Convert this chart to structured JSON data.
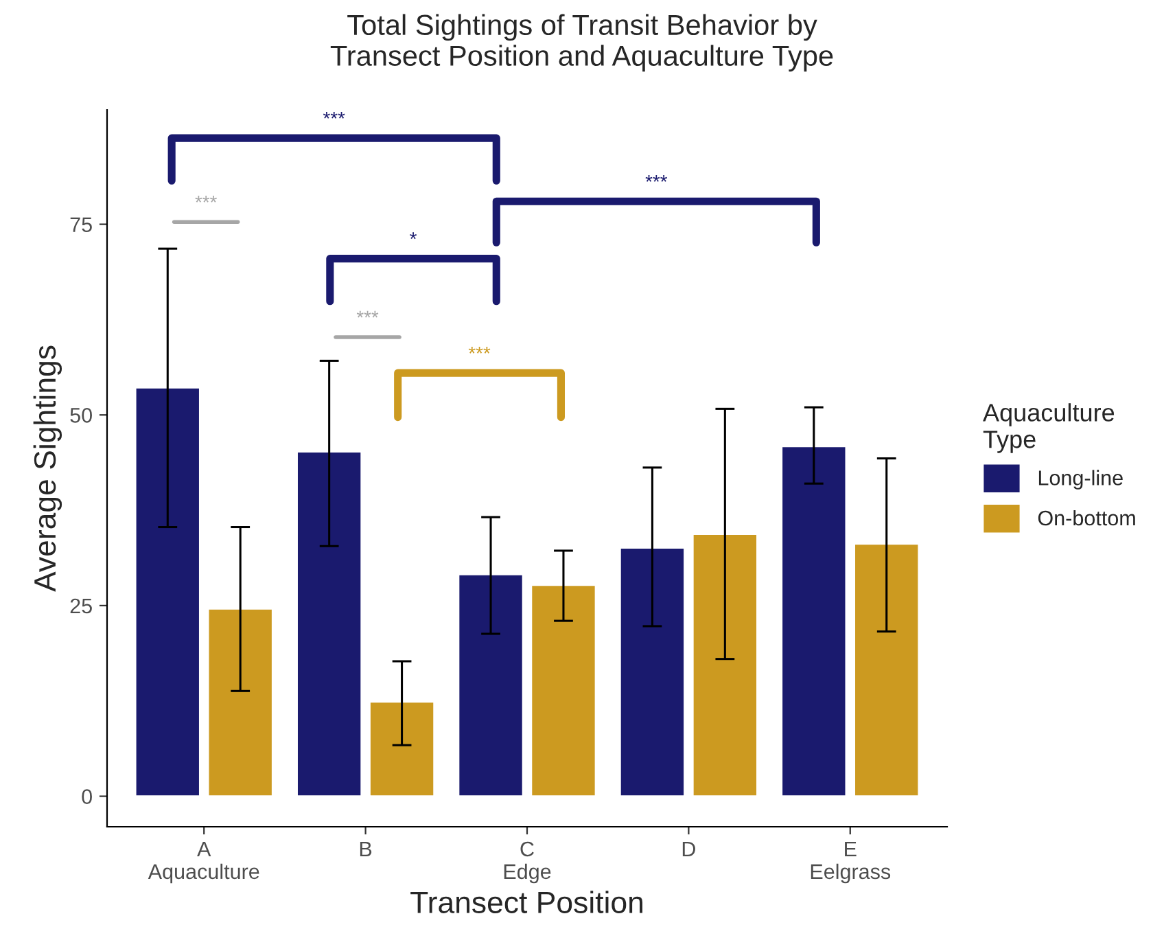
{
  "chart_data": {
    "type": "bar",
    "title": "Total Sightings of Transit Behavior by\nTransect Position and Aquaculture Type",
    "xlabel": "Transect Position",
    "ylabel": "Average Sightings",
    "legend_title": "Aquaculture\nType",
    "categories": [
      "A\nAquaculture",
      "B",
      "C\nEdge",
      "D",
      "E\nEelgrass"
    ],
    "series": [
      {
        "name": "Long-line",
        "color": "#1a1a6e",
        "values": [
          53.6,
          45.2,
          29.1,
          32.6,
          45.9
        ],
        "errors": [
          [
            35.3,
            71.8
          ],
          [
            32.8,
            57.1
          ],
          [
            21.3,
            36.6
          ],
          [
            22.3,
            43.1
          ],
          [
            41.0,
            51.0
          ]
        ]
      },
      {
        "name": "On-bottom",
        "color": "#cc9a20",
        "values": [
          24.6,
          12.4,
          27.7,
          34.4,
          33.1
        ],
        "errors": [
          [
            13.8,
            35.3
          ],
          [
            6.7,
            17.7
          ],
          [
            23.0,
            32.2
          ],
          [
            18.0,
            50.8
          ],
          [
            21.6,
            44.3
          ]
        ]
      }
    ],
    "ylim": [
      -4,
      90
    ],
    "yticks": [
      0,
      25,
      50,
      75
    ],
    "grid": false,
    "legend": "right",
    "annotations": [
      "***",
      "***",
      "*",
      "***",
      "***",
      "***"
    ]
  }
}
